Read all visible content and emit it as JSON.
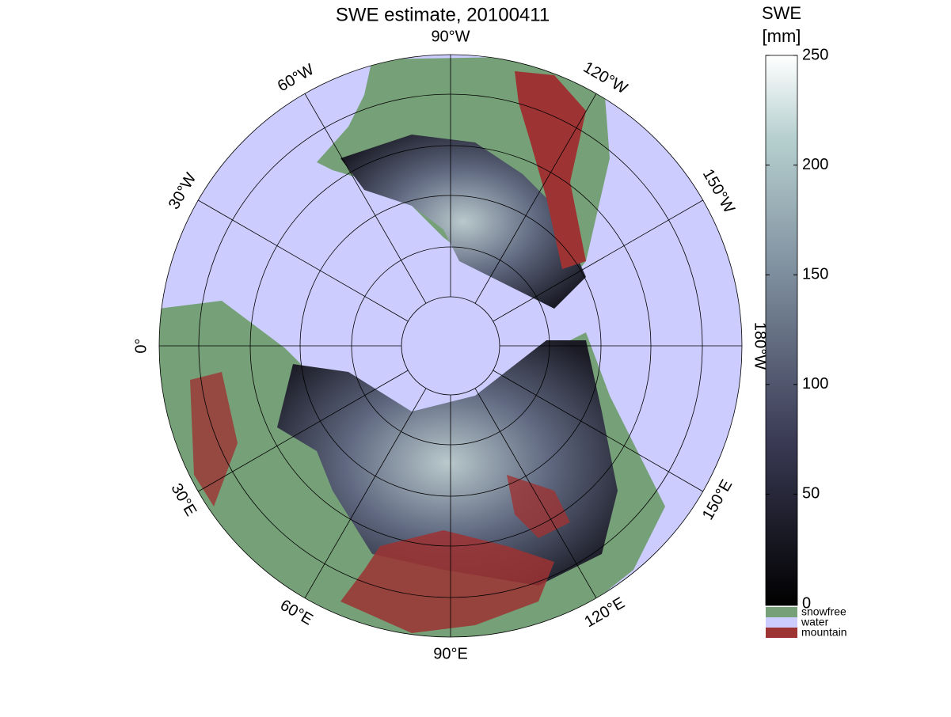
{
  "title": "SWE estimate, 20100411",
  "colorbar": {
    "label": [
      "SWE",
      "[mm]"
    ],
    "lim": [
      0,
      250
    ],
    "ticks": [
      0,
      50,
      100,
      150,
      200,
      250
    ],
    "categories": [
      {
        "name": "snowfree",
        "color": "#76a077"
      },
      {
        "name": "water",
        "color": "#ccccff"
      },
      {
        "name": "mountain",
        "color": "#9e3333"
      }
    ]
  },
  "map": {
    "longitude_labels": [
      "90°W",
      "120°W",
      "150°W",
      "180°W",
      "150°E",
      "120°E",
      "90°E",
      "60°E",
      "30°E",
      "0°",
      "30°W",
      "60°W"
    ]
  }
}
